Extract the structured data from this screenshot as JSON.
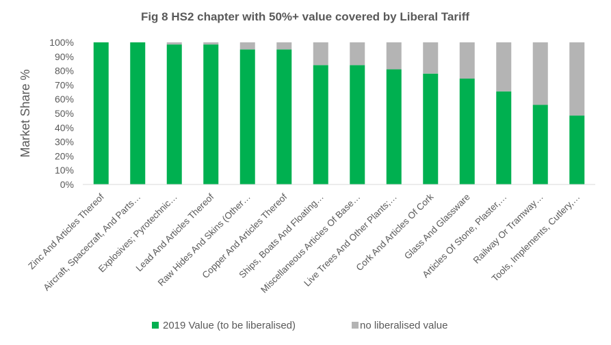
{
  "chart_data": {
    "type": "bar",
    "stacked": true,
    "title": "Fig 8 HS2 chapter with 50%+ value covered by Liberal Tariff",
    "xlabel": "",
    "ylabel": "Market Share %",
    "ylim": [
      0,
      100
    ],
    "yticks": [
      "0%",
      "10%",
      "20%",
      "30%",
      "40%",
      "50%",
      "60%",
      "70%",
      "80%",
      "90%",
      "100%"
    ],
    "categories": [
      "Zinc And Articles Thereof",
      "Aircraft, Spacecraft, And Parts…",
      "Explosives; Pyrotechnic…",
      "Lead And Articles Thereof",
      "Raw Hides And Skins (Other…",
      "Copper And Articles Thereof",
      "Ships, Boats And Floating…",
      "Miscellaneous Articles Of Base…",
      "Live Trees And Other Plants;…",
      "Cork And Articles Of Cork",
      "Glass And Glassware",
      "Articles Of Stone, Plaster,…",
      "Railway Or Tramway…",
      "Tools, Implements, Cutlery,…"
    ],
    "series": [
      {
        "name": "2019 Value (to be liberalised)",
        "color": "#00b050",
        "values": [
          100,
          100,
          98.5,
          98.5,
          95,
          95,
          84,
          84,
          81,
          78,
          74.5,
          65.5,
          56,
          48.5
        ]
      },
      {
        "name": "no liberalised value",
        "color": "#b4b4b4",
        "values": [
          0,
          0,
          1.5,
          1.5,
          5,
          5,
          16,
          16,
          19,
          22,
          25.5,
          34.5,
          44,
          51.5
        ]
      }
    ],
    "legend_position": "bottom",
    "grid": false
  }
}
